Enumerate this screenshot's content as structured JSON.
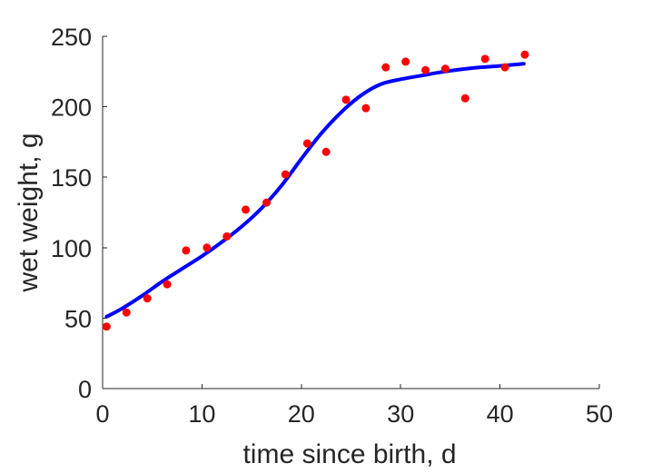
{
  "chart_data": {
    "type": "scatter",
    "title": "",
    "xlabel": "time since birth, d",
    "ylabel": "wet weight, g",
    "xlim": [
      0,
      50
    ],
    "ylim": [
      0,
      250
    ],
    "x_ticks": [
      0,
      10,
      20,
      30,
      40,
      50
    ],
    "y_ticks": [
      0,
      50,
      100,
      150,
      200,
      250
    ],
    "grid": false,
    "legend": "none",
    "series": [
      {
        "kind": "points",
        "color": "#ff0000",
        "x": [
          0.4,
          2.4,
          4.5,
          6.5,
          8.4,
          10.5,
          12.5,
          14.4,
          16.5,
          18.4,
          20.6,
          22.5,
          24.5,
          26.5,
          28.5,
          30.5,
          32.5,
          34.5,
          36.5,
          38.5,
          40.5,
          42.5
        ],
        "y": [
          44,
          54,
          64,
          74,
          98,
          100,
          108,
          127,
          132,
          152,
          174,
          168,
          205,
          199,
          228,
          232,
          226,
          227,
          206,
          234,
          228,
          237
        ]
      },
      {
        "kind": "line",
        "color": "#0000ff",
        "x": [
          0.4,
          2,
          4,
          6,
          8,
          10,
          12,
          14,
          16,
          18,
          20,
          22,
          24,
          26,
          28,
          30,
          32,
          34,
          36,
          38,
          40,
          42.4
        ],
        "y": [
          51,
          57,
          66,
          76,
          85,
          94,
          104,
          115,
          128,
          144,
          163,
          181,
          196,
          208,
          216,
          219.5,
          222,
          224.5,
          226.5,
          228,
          229,
          230.5
        ]
      }
    ]
  }
}
